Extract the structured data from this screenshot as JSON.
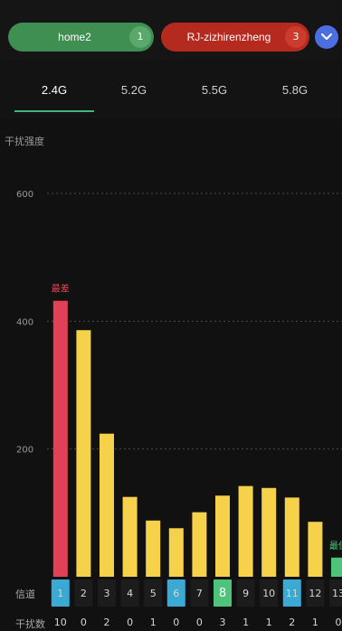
{
  "header": {
    "ssid_tags": [
      {
        "label": "home2",
        "count": "1",
        "color": "#3f8e52"
      },
      {
        "label": "RJ-zizhirenzheng",
        "count": "3",
        "color": "#b52a1f"
      }
    ],
    "expand_icon": "chevron-down-icon"
  },
  "tabs": [
    {
      "label": "2.4G",
      "active": true
    },
    {
      "label": "5.2G",
      "active": false
    },
    {
      "label": "5.5G",
      "active": false
    },
    {
      "label": "5.8G",
      "active": false
    }
  ],
  "chart_title": "干扰强度",
  "row_labels": {
    "channel": "信道",
    "interference_count": "干扰数"
  },
  "chart_data": {
    "type": "bar",
    "ylabel": "干扰强度",
    "ylim": [
      0,
      600
    ],
    "yticks": [
      200,
      400,
      600
    ],
    "grid": true,
    "categories": [
      "1",
      "2",
      "3",
      "4",
      "5",
      "6",
      "7",
      "8",
      "9",
      "10",
      "11",
      "12",
      "13"
    ],
    "values": [
      432,
      386,
      224,
      125,
      88,
      76,
      101,
      127,
      142,
      139,
      124,
      86,
      30
    ],
    "interference_counts": [
      "10",
      "0",
      "2",
      "0",
      "1",
      "0",
      "0",
      "3",
      "1",
      "1",
      "2",
      "1",
      "0"
    ],
    "highlighted_channels": [
      "1",
      "6",
      "11"
    ],
    "best_channel": "8",
    "worst_label": "最差",
    "best_label": "最佳",
    "colors": {
      "worst": "#e14156",
      "normal": "#f5d24a",
      "best": "#4fc37a",
      "highlight": "#3aa9d4"
    }
  }
}
